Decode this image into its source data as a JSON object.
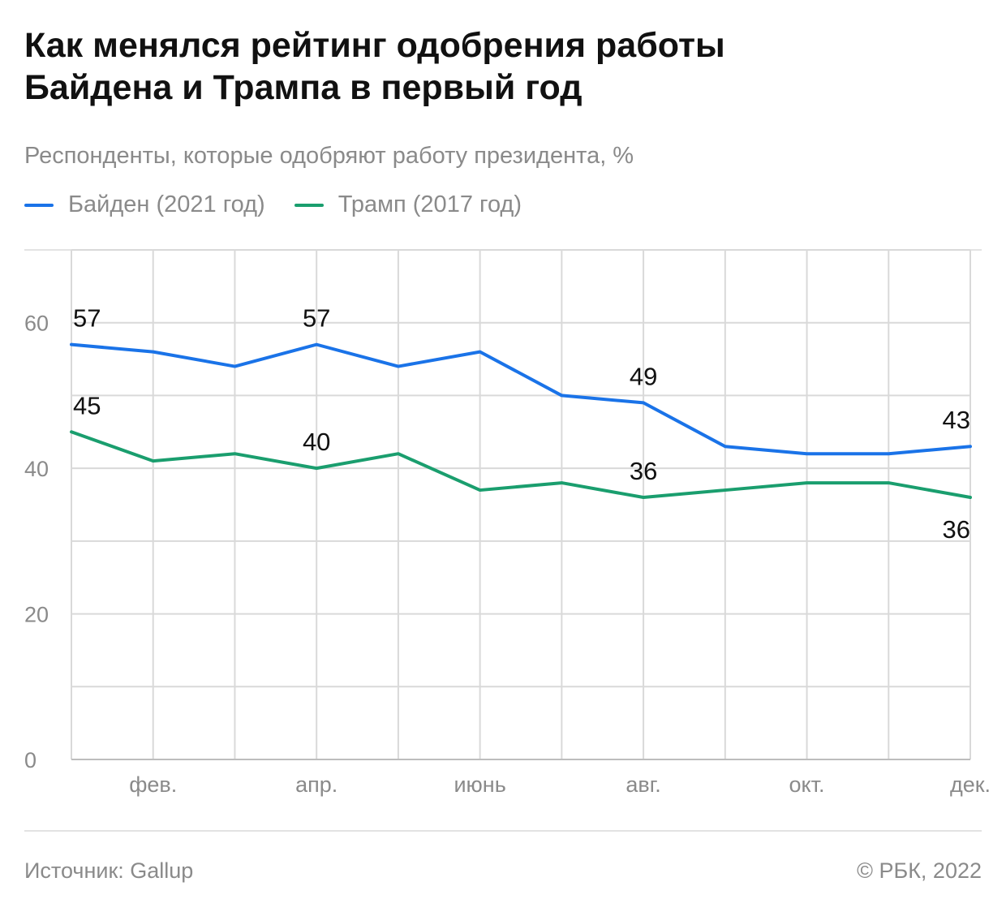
{
  "title_lines": [
    "Как менялся рейтинг одобрения работы",
    "Байдена и Трампа в первый год"
  ],
  "subtitle": "Респонденты, которые одобряют работу президента, %",
  "colors": {
    "biden": "#1a73e8",
    "trump": "#1a9e6e",
    "grid": "#d9d9d9",
    "axis_text": "#8a8a8a",
    "label_text": "#111111"
  },
  "footer": {
    "source": "Источник: Gallup",
    "copyright": "© РБК, 2022"
  },
  "chart_data": {
    "type": "line",
    "title": "Как менялся рейтинг одобрения работы Байдена и Трампа в первый год",
    "ylabel": "Респонденты, которые одобряют работу президента, %",
    "xlabel": "",
    "months": [
      1,
      2,
      3,
      4,
      5,
      6,
      7,
      8,
      9,
      10,
      11,
      12
    ],
    "x_tick_labels": [
      {
        "month": 2,
        "label": "фев."
      },
      {
        "month": 4,
        "label": "апр."
      },
      {
        "month": 6,
        "label": "июнь"
      },
      {
        "month": 8,
        "label": "авг."
      },
      {
        "month": 10,
        "label": "окт."
      },
      {
        "month": 12,
        "label": "дек."
      }
    ],
    "y_ticks": [
      0,
      20,
      40,
      60
    ],
    "y_gridlines": [
      10,
      20,
      30,
      40,
      50,
      60,
      70
    ],
    "ylim": [
      0,
      70
    ],
    "series": [
      {
        "name": "Байден (2021 год)",
        "key": "biden",
        "values": [
          57,
          56,
          54,
          57,
          54,
          56,
          50,
          49,
          43,
          42,
          42,
          43
        ],
        "labels": [
          {
            "month": 1,
            "text": "57",
            "pos": "above"
          },
          {
            "month": 4,
            "text": "57",
            "pos": "above"
          },
          {
            "month": 8,
            "text": "49",
            "pos": "above"
          },
          {
            "month": 12,
            "text": "43",
            "pos": "above"
          }
        ]
      },
      {
        "name": "Трамп (2017 год)",
        "key": "trump",
        "values": [
          45,
          41,
          42,
          40,
          42,
          37,
          38,
          36,
          37,
          38,
          38,
          36
        ],
        "labels": [
          {
            "month": 1,
            "text": "45",
            "pos": "above"
          },
          {
            "month": 4,
            "text": "40",
            "pos": "above"
          },
          {
            "month": 8,
            "text": "36",
            "pos": "above"
          },
          {
            "month": 12,
            "text": "36",
            "pos": "below"
          }
        ]
      }
    ]
  }
}
